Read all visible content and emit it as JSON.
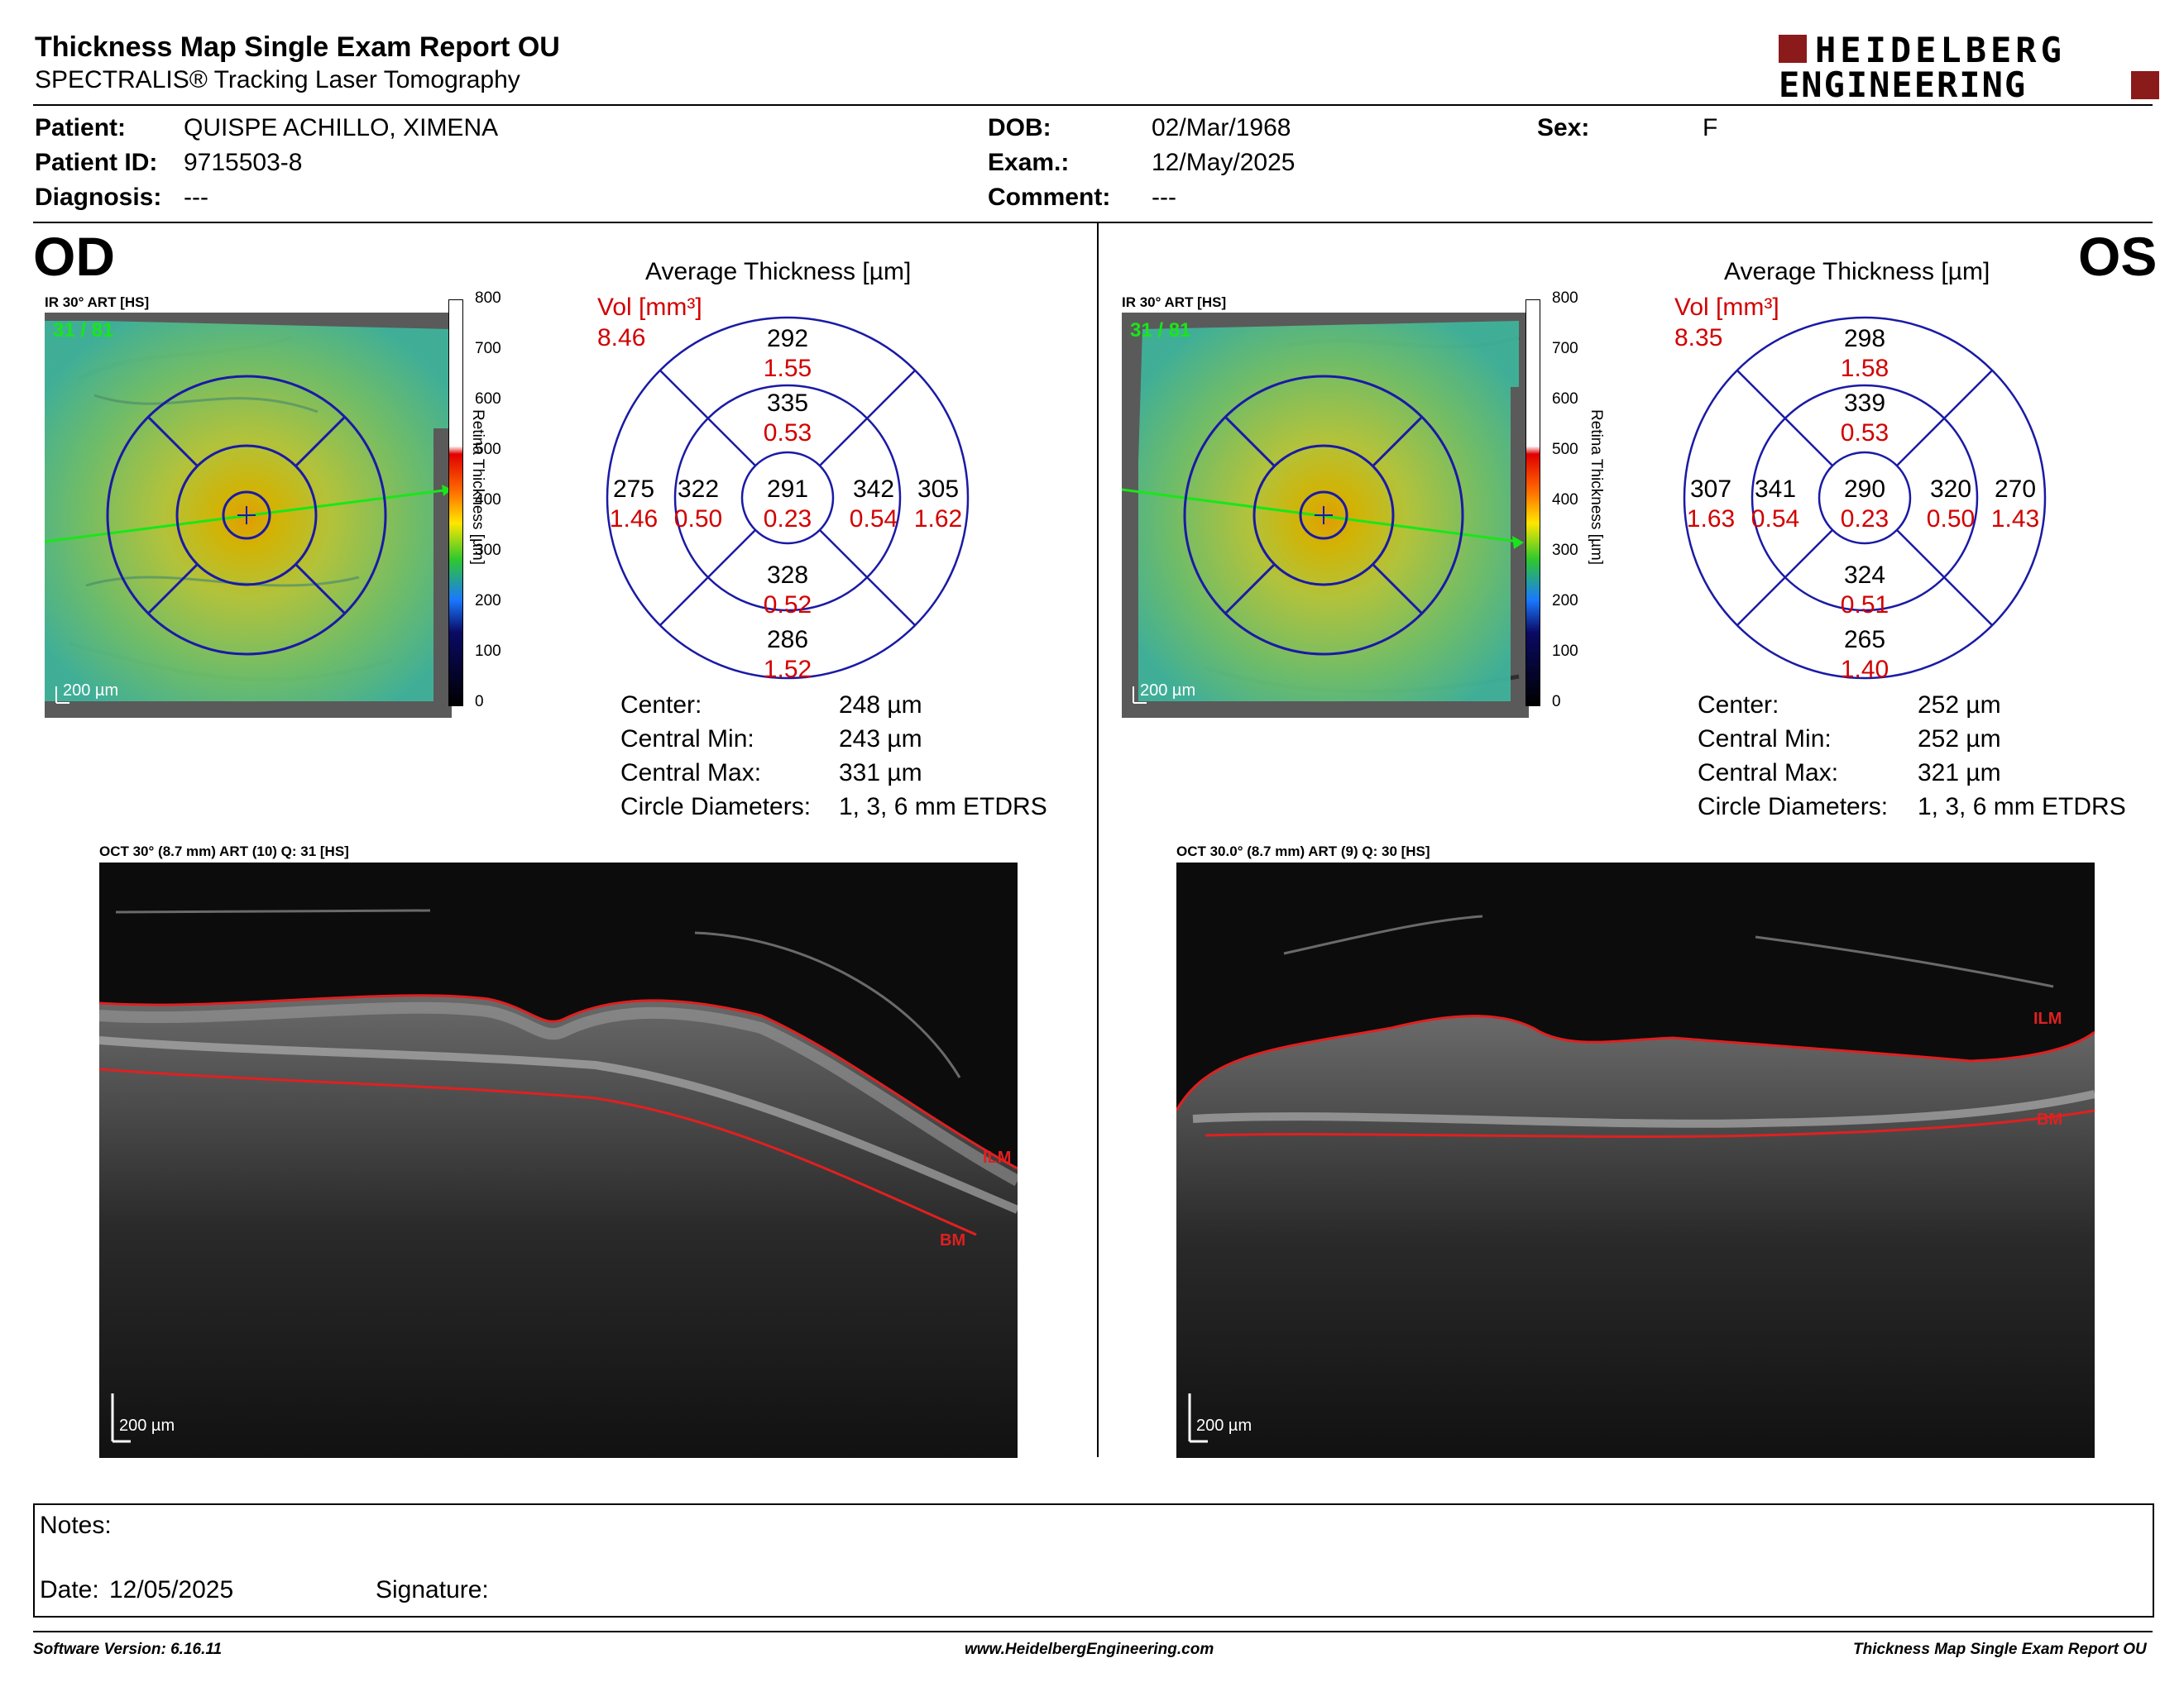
{
  "report": {
    "title": "Thickness Map Single Exam Report OU",
    "subtitle": "SPECTRALIS® Tracking Laser Tomography",
    "logo_line1": "HEIDELBERG",
    "logo_line2": "ENGINEERING"
  },
  "patient": {
    "patient_label": "Patient:",
    "patient_value": "QUISPE ACHILLO, XIMENA",
    "id_label": "Patient ID:",
    "id_value": "9715503-8",
    "diagnosis_label": "Diagnosis:",
    "diagnosis_value": "---",
    "dob_label": "DOB:",
    "dob_value": "02/Mar/1968",
    "exam_label": "Exam.:",
    "exam_value": "12/May/2025",
    "comment_label": "Comment:",
    "comment_value": "---",
    "sex_label": "Sex:",
    "sex_value": "F"
  },
  "colors": {
    "vol_red": "#d20000",
    "circle_blue": "#1a1aa6",
    "logo_red": "#8b1a1a"
  },
  "scale": {
    "ticks": [
      "800",
      "700",
      "600",
      "500",
      "400",
      "300",
      "200",
      "100",
      "0"
    ],
    "label": "Retina Thickness [µm]"
  },
  "od": {
    "eye_label": "OD",
    "image_title": "IR 30° ART [HS]",
    "frame_counter": "31 / 81",
    "scale_bar": "200 µm",
    "avg_title": "Average Thickness [µm]",
    "vol_label": "Vol [mm³]",
    "vol_total": "8.46",
    "sectors": {
      "outer_superior": {
        "t": "292",
        "v": "1.55"
      },
      "inner_superior": {
        "t": "335",
        "v": "0.53"
      },
      "outer_nasal": {
        "t": "275",
        "v": "1.46"
      },
      "inner_nasal": {
        "t": "322",
        "v": "0.50"
      },
      "center": {
        "t": "291",
        "v": "0.23"
      },
      "inner_temporal": {
        "t": "342",
        "v": "0.54"
      },
      "outer_temporal": {
        "t": "305",
        "v": "1.62"
      },
      "inner_inferior": {
        "t": "328",
        "v": "0.52"
      },
      "outer_inferior": {
        "t": "286",
        "v": "1.52"
      }
    },
    "stats": [
      {
        "label": "Center:",
        "value": "248 µm"
      },
      {
        "label": "Central Min:",
        "value": "243 µm"
      },
      {
        "label": "Central Max:",
        "value": "331 µm"
      },
      {
        "label": "Circle Diameters:",
        "value": "1, 3, 6 mm ETDRS"
      }
    ],
    "oct_title": "OCT 30° (8.7 mm) ART (10) Q: 31 [HS]",
    "oct_scale_bar": "200 µm",
    "ilm": "ILM",
    "bm": "BM"
  },
  "os": {
    "eye_label": "OS",
    "image_title": "IR 30° ART [HS]",
    "frame_counter": "31 / 81",
    "scale_bar": "200 µm",
    "avg_title": "Average Thickness [µm]",
    "vol_label": "Vol [mm³]",
    "vol_total": "8.35",
    "sectors": {
      "outer_superior": {
        "t": "298",
        "v": "1.58"
      },
      "inner_superior": {
        "t": "339",
        "v": "0.53"
      },
      "outer_nasal": {
        "t": "307",
        "v": "1.63"
      },
      "inner_nasal": {
        "t": "341",
        "v": "0.54"
      },
      "center": {
        "t": "290",
        "v": "0.23"
      },
      "inner_temporal": {
        "t": "320",
        "v": "0.50"
      },
      "outer_temporal": {
        "t": "270",
        "v": "1.43"
      },
      "inner_inferior": {
        "t": "324",
        "v": "0.51"
      },
      "outer_inferior": {
        "t": "265",
        "v": "1.40"
      }
    },
    "stats": [
      {
        "label": "Center:",
        "value": "252 µm"
      },
      {
        "label": "Central Min:",
        "value": "252 µm"
      },
      {
        "label": "Central Max:",
        "value": "321 µm"
      },
      {
        "label": "Circle Diameters:",
        "value": "1, 3, 6 mm ETDRS"
      }
    ],
    "oct_title": "OCT 30.0° (8.7 mm) ART (9) Q: 30 [HS]",
    "oct_scale_bar": "200 µm",
    "ilm": "ILM",
    "bm": "BM"
  },
  "notes": {
    "notes_label": "Notes:",
    "date_label": "Date:",
    "date_value": "12/05/2025",
    "signature_label": "Signature:"
  },
  "footer": {
    "software": "Software Version: 6.16.11",
    "website": "www.HeidelbergEngineering.com",
    "report_name": "Thickness Map Single Exam Report OU"
  }
}
